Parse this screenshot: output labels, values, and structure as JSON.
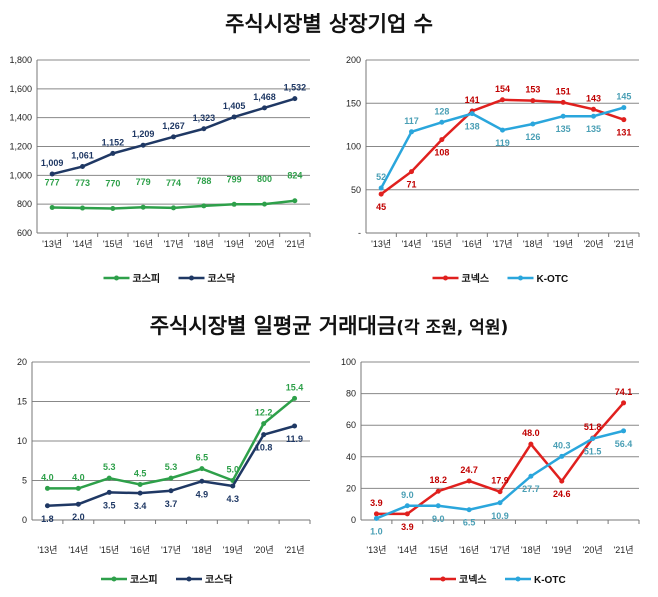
{
  "titles": {
    "top": "주식시장별 상장기업 수",
    "bottom_main": "주식시장별 일평균 거래대금",
    "bottom_unit": "(각 조원, 억원)"
  },
  "chart_data": [
    {
      "type": "line",
      "categories": [
        "'13년",
        "'14년",
        "'15년",
        "'16년",
        "'17년",
        "'18년",
        "'19년",
        "'20년",
        "'21년"
      ],
      "ylim": [
        600,
        1800
      ],
      "yticks": [
        600,
        800,
        1000,
        1200,
        1400,
        1600,
        1800
      ],
      "ytick_labels": [
        "600",
        "800",
        "1,000",
        "1,200",
        "1,400",
        "1,600",
        "1,800"
      ],
      "grid": true,
      "legend": "bottom",
      "series": [
        {
          "name": "코스피",
          "color": "#2ea04a",
          "label_color": "#2ea04a",
          "values": [
            777,
            773,
            770,
            779,
            774,
            788,
            799,
            800,
            824
          ],
          "labels": [
            "777",
            "773",
            "770",
            "779",
            "774",
            "788",
            "799",
            "800",
            "824"
          ]
        },
        {
          "name": "코스닥",
          "color": "#1f3864",
          "label_color": "#1f3864",
          "values": [
            1009,
            1061,
            1152,
            1209,
            1267,
            1323,
            1405,
            1468,
            1532
          ],
          "labels": [
            "1,009",
            "1,061",
            "1,152",
            "1,209",
            "1,267",
            "1,323",
            "1,405",
            "1,468",
            "1,532"
          ]
        }
      ]
    },
    {
      "type": "line",
      "categories": [
        "'13년",
        "'14년",
        "'15년",
        "'16년",
        "'17년",
        "'18년",
        "'19년",
        "'20년",
        "'21년"
      ],
      "ylim": [
        0,
        200
      ],
      "yticks": [
        0,
        50,
        100,
        150,
        200
      ],
      "ytick_labels": [
        "-",
        "50",
        "100",
        "150",
        "200"
      ],
      "grid": true,
      "legend": "bottom",
      "series": [
        {
          "name": "코넥스",
          "color": "#e0201e",
          "label_color": "#c00000",
          "values": [
            45,
            71,
            108,
            141,
            154,
            153,
            151,
            143,
            131
          ],
          "labels": [
            "45",
            "71",
            "108",
            "141",
            "154",
            "153",
            "151",
            "143",
            "131"
          ]
        },
        {
          "name": "K-OTC",
          "color": "#2aa6dc",
          "label_color": "#4a9fb5",
          "values": [
            52,
            117,
            128,
            138,
            119,
            126,
            135,
            135,
            145
          ],
          "labels": [
            "52",
            "117",
            "128",
            "138",
            "119",
            "126",
            "135",
            "135",
            "145"
          ]
        }
      ]
    },
    {
      "type": "line",
      "categories": [
        "'13년",
        "'14년",
        "'15년",
        "'16년",
        "'17년",
        "'18년",
        "'19년",
        "'20년",
        "'21년"
      ],
      "ylim": [
        0,
        20
      ],
      "yticks": [
        0,
        5,
        10,
        15,
        20
      ],
      "ytick_labels": [
        "0",
        "5",
        "10",
        "15",
        "20"
      ],
      "grid": true,
      "legend": "bottom",
      "series": [
        {
          "name": "코스피",
          "color": "#2ea04a",
          "label_color": "#2ea04a",
          "values": [
            4.0,
            4.0,
            5.3,
            4.5,
            5.3,
            6.5,
            5.0,
            12.2,
            15.4
          ],
          "labels": [
            "4.0",
            "4.0",
            "5.3",
            "4.5",
            "5.3",
            "6.5",
            "5.0",
            "12.2",
            "15.4"
          ]
        },
        {
          "name": "코스닥",
          "color": "#1f3864",
          "label_color": "#1f3864",
          "values": [
            1.8,
            2.0,
            3.5,
            3.4,
            3.7,
            4.9,
            4.3,
            10.8,
            11.9
          ],
          "labels": [
            "1.8",
            "2.0",
            "3.5",
            "3.4",
            "3.7",
            "4.9",
            "4.3",
            "10.8",
            "11.9"
          ]
        }
      ]
    },
    {
      "type": "line",
      "categories": [
        "'13년",
        "'14년",
        "'15년",
        "'16년",
        "'17년",
        "'18년",
        "'19년",
        "'20년",
        "'21년"
      ],
      "ylim": [
        0,
        100
      ],
      "yticks": [
        0,
        20,
        40,
        60,
        80,
        100
      ],
      "ytick_labels": [
        "0",
        "20",
        "40",
        "60",
        "80",
        "100"
      ],
      "grid": true,
      "legend": "bottom",
      "series": [
        {
          "name": "코넥스",
          "color": "#e0201e",
          "label_color": "#c00000",
          "values": [
            3.9,
            3.9,
            18.2,
            24.7,
            17.9,
            48.0,
            24.6,
            51.8,
            74.1
          ],
          "labels": [
            "3.9",
            "3.9",
            "18.2",
            "24.7",
            "17.9",
            "48.0",
            "24.6",
            "51.8",
            "74.1"
          ]
        },
        {
          "name": "K-OTC",
          "color": "#2aa6dc",
          "label_color": "#4a9fb5",
          "values": [
            1.0,
            9.0,
            9.0,
            6.5,
            10.9,
            27.7,
            40.3,
            51.5,
            56.4
          ],
          "labels": [
            "1.0",
            "9.0",
            "9.0",
            "6.5",
            "10.9",
            "27.7",
            "40.3",
            "51.5",
            "56.4"
          ]
        }
      ]
    }
  ]
}
